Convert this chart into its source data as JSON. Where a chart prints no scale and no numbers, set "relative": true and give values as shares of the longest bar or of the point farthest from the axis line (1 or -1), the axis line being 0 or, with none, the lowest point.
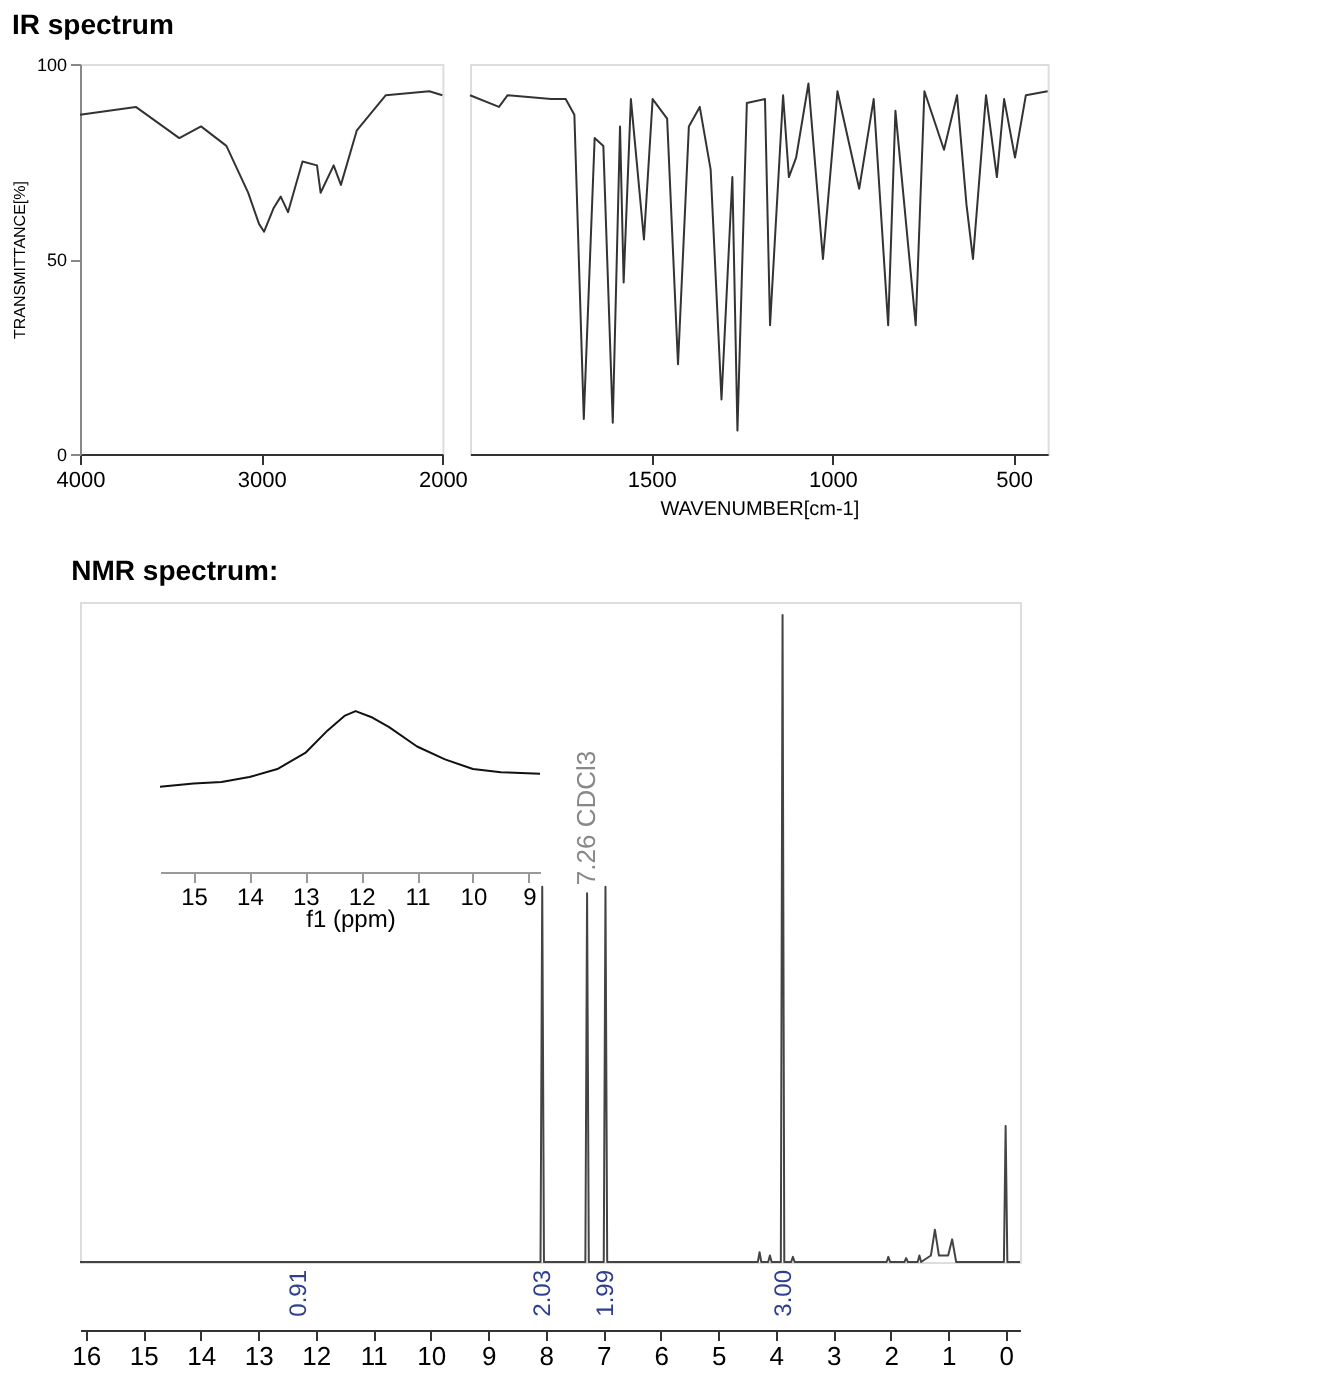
{
  "chart_data": [
    {
      "type": "line",
      "title": "IR spectrum",
      "ylabel": "TRANSMITTANCE[%]",
      "xlim": [
        4000,
        2000
      ],
      "ylim": [
        0,
        100
      ],
      "xticks": [
        4000,
        3000,
        2000
      ],
      "yticks": [
        0,
        50,
        100
      ],
      "series": [
        {
          "color": "#333333",
          "x": [
            4000,
            3692,
            3452,
            3332,
            3192,
            3072,
            3012,
            2984,
            2932,
            2892,
            2852,
            2772,
            2692,
            2672,
            2600,
            2560,
            2472,
            2312,
            2072,
            2000
          ],
          "values": [
            87,
            89,
            81,
            84,
            79,
            67,
            59,
            57,
            63,
            66,
            62,
            75,
            74,
            67,
            74,
            69,
            83,
            92,
            93,
            92
          ]
        }
      ]
    },
    {
      "type": "line",
      "xlabel": "WAVENUMBER[cm-1]",
      "xlim": [
        2000,
        406
      ],
      "ylim": [
        0,
        100
      ],
      "xticks": [
        1500,
        1000,
        500
      ],
      "tick_labels": "x",
      "series": [
        {
          "color": "#333333",
          "x": [
            2000,
            1920,
            1896,
            1776,
            1736,
            1712,
            1686,
            1656,
            1632,
            1606,
            1586,
            1576,
            1556,
            1520,
            1496,
            1456,
            1426,
            1396,
            1366,
            1336,
            1306,
            1276,
            1262,
            1236,
            1186,
            1172,
            1136,
            1120,
            1100,
            1066,
            1026,
            986,
            926,
            886,
            846,
            826,
            770,
            746,
            692,
            656,
            630,
            612,
            576,
            546,
            526,
            496,
            466,
            406
          ],
          "values": [
            92,
            89,
            92,
            91,
            91,
            87,
            9,
            81,
            79,
            8,
            84,
            44,
            91,
            55,
            91,
            86,
            23,
            84,
            89,
            73,
            14,
            71,
            6,
            90,
            91,
            33,
            92,
            71,
            76,
            95,
            50,
            93,
            68,
            91,
            33,
            88,
            33,
            93,
            78,
            92,
            64,
            50,
            92,
            71,
            91,
            76,
            92,
            93
          ]
        }
      ]
    },
    {
      "type": "line",
      "title": "NMR spectrum:",
      "relative": true,
      "xlim": [
        16.1,
        -0.25
      ],
      "xticks": [
        16,
        15,
        14,
        13,
        12,
        11,
        10,
        9,
        8,
        7,
        6,
        5,
        4,
        3,
        2,
        1,
        0
      ],
      "annotations": [
        {
          "text": "7.26 CDCl3",
          "x": 7.28,
          "y": 0.57
        },
        {
          "text": "0.91",
          "x": 12.3,
          "y": 0
        },
        {
          "text": "2.03",
          "x": 8.06,
          "y": 0
        },
        {
          "text": "1.99",
          "x": 6.96,
          "y": 0
        },
        {
          "text": "3.00",
          "x": 3.88,
          "y": 0
        }
      ],
      "series": [
        {
          "color": "#444444",
          "x": [
            16.1,
            8.09,
            8.06,
            8.03,
            7.31,
            7.28,
            7.25,
            6.99,
            6.96,
            6.93,
            4.31,
            4.28,
            4.25,
            4.13,
            4.1,
            4.07,
            3.91,
            3.88,
            3.85,
            3.73,
            3.7,
            3.67,
            2.07,
            2.04,
            2.01,
            1.76,
            1.73,
            1.7,
            1.53,
            1.5,
            1.47,
            1.3,
            1.23,
            1.16,
            1.0,
            0.93,
            0.86,
            0.03,
            0.0,
            -0.03,
            -0.25
          ],
          "values": [
            0,
            0,
            0.58,
            0,
            0,
            0.57,
            0,
            0,
            0.58,
            0,
            0,
            0.015,
            0,
            0,
            0.01,
            0,
            0,
            1,
            0,
            0,
            0.008,
            0,
            0,
            0.008,
            0,
            0,
            0.006,
            0,
            0,
            0.01,
            0,
            0.01,
            0.05,
            0.01,
            0.01,
            0.035,
            0,
            0,
            0.21,
            0,
            0
          ]
        }
      ]
    },
    {
      "type": "line",
      "relative": true,
      "xlabel": "f1 (ppm)",
      "xlim": [
        15.6,
        8.8
      ],
      "xticks": [
        15,
        14,
        13,
        12,
        11,
        10,
        9
      ],
      "series": [
        {
          "color": "#111111",
          "x": [
            15.6,
            15,
            14.5,
            14,
            13.5,
            13,
            12.6,
            12.3,
            12.1,
            11.8,
            11.5,
            11,
            10.5,
            10,
            9.5,
            8.8
          ],
          "values": [
            0.53,
            0.55,
            0.56,
            0.59,
            0.64,
            0.74,
            0.88,
            0.97,
            1.0,
            0.96,
            0.9,
            0.78,
            0.7,
            0.64,
            0.62,
            0.61
          ]
        }
      ]
    }
  ]
}
